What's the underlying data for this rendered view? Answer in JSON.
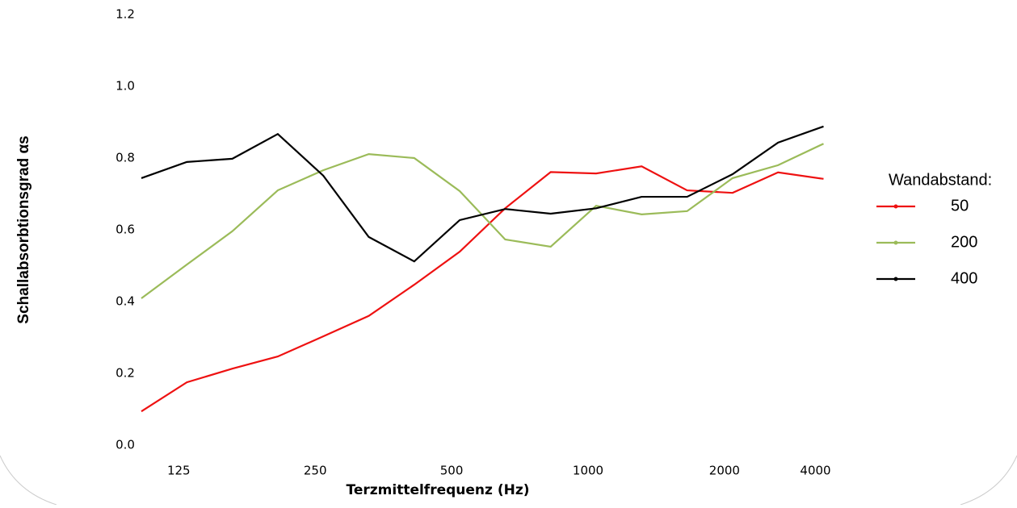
{
  "chart_data": {
    "type": "line",
    "x_label": "Terzmittelfrequenz (Hz)",
    "y_label": "Schallabsorbtionsgrad αs",
    "categories": [
      null,
      "125",
      null,
      null,
      "250",
      null,
      null,
      "500",
      null,
      null,
      "1000",
      null,
      null,
      "2000",
      null,
      "4000"
    ],
    "ylim": [
      0,
      1.2
    ],
    "yticks": [
      {
        "value": 0,
        "label": "0.0"
      },
      0.2,
      0.4,
      0.6,
      0.8,
      {
        "value": 1,
        "label": "1.0"
      },
      1.2
    ],
    "legend_title": "Wandabstand:",
    "legend_position": "right",
    "series": [
      {
        "name": "50",
        "color": "#ee1111",
        "values": [
          0.094,
          0.175,
          0.213,
          0.247,
          0.303,
          0.36,
          0.447,
          0.539,
          0.66,
          0.761,
          0.757,
          0.777,
          0.71,
          0.703,
          0.76,
          0.742
        ]
      },
      {
        "name": "200",
        "color": "#9bbb59",
        "values": [
          0.409,
          0.503,
          0.596,
          0.71,
          0.766,
          0.811,
          0.8,
          0.708,
          0.573,
          0.553,
          0.667,
          0.643,
          0.652,
          0.744,
          0.78,
          0.84
        ]
      },
      {
        "name": "400",
        "color": "#000000",
        "values": [
          0.744,
          0.789,
          0.798,
          0.867,
          0.751,
          0.58,
          0.512,
          0.627,
          0.658,
          0.645,
          0.66,
          0.692,
          0.692,
          0.755,
          0.843,
          0.888
        ]
      }
    ]
  }
}
